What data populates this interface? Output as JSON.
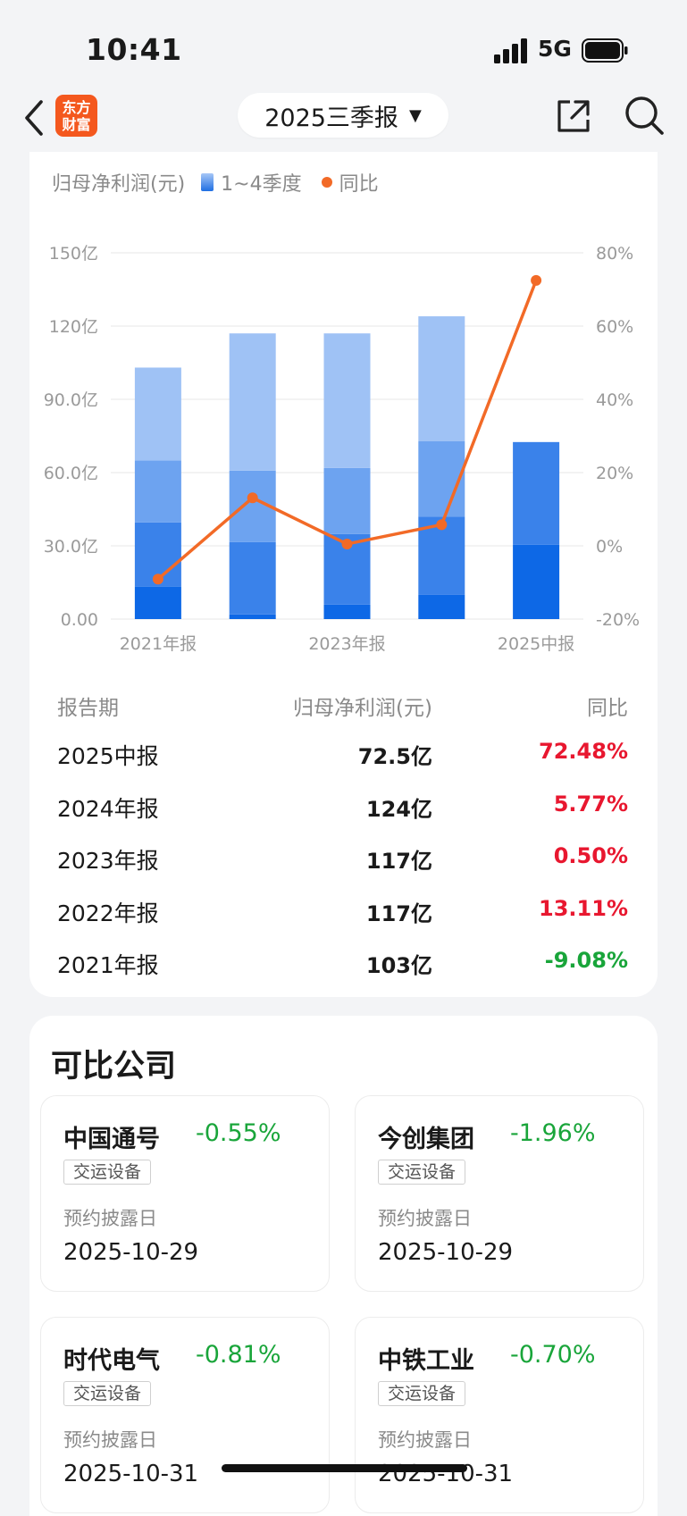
{
  "status": {
    "time": "10:41",
    "network": "5G"
  },
  "nav": {
    "logo_line1": "东方",
    "logo_line2": "财富",
    "period": "2025三季报",
    "caret": "▼"
  },
  "legend": {
    "metric": "归母净利润(元)",
    "bars": "1~4季度",
    "line": "同比"
  },
  "chart_data": {
    "type": "bar",
    "categories": [
      "2021年报",
      "2022年报",
      "2023年报",
      "2024年报",
      "2025中报"
    ],
    "x_tick_labels": [
      "2021年报",
      "",
      "2023年报",
      "",
      "2025中报"
    ],
    "stack_series": [
      {
        "name": "Q1",
        "values": [
          13.3,
          1.9,
          5.9,
          9.9,
          30.4
        ]
      },
      {
        "name": "Q2",
        "values": [
          26.3,
          29.6,
          28.9,
          32.1,
          42.1
        ]
      },
      {
        "name": "Q3",
        "values": [
          25.4,
          29.3,
          27.1,
          30.8,
          0
        ]
      },
      {
        "name": "Q4",
        "values": [
          38.0,
          56.2,
          55.1,
          51.2,
          0
        ]
      }
    ],
    "yoy": [
      -9.08,
      13.11,
      0.5,
      5.77,
      72.48
    ],
    "y_left": {
      "range": [
        0,
        150
      ],
      "ticks": [
        "0.00",
        "30.0亿",
        "60.0亿",
        "90.0亿",
        "120亿",
        "150亿"
      ]
    },
    "y_right": {
      "range": [
        -20,
        80
      ],
      "ticks": [
        "-20%",
        "0%",
        "20%",
        "40%",
        "60%",
        "80%"
      ]
    },
    "colors": {
      "stack": [
        "#0d68e6",
        "#3a82ea",
        "#6da3f0",
        "#9fc2f5"
      ],
      "line": "#f26a27",
      "grid": "#ececec"
    },
    "grid": true
  },
  "table": {
    "headers": [
      "报告期",
      "归母净利润(元)",
      "同比"
    ],
    "rows": [
      {
        "period": "2025中报",
        "profit": "72.5亿",
        "yoy": "72.48%",
        "dir": "up"
      },
      {
        "period": "2024年报",
        "profit": "124亿",
        "yoy": "5.77%",
        "dir": "up"
      },
      {
        "period": "2023年报",
        "profit": "117亿",
        "yoy": "0.50%",
        "dir": "up"
      },
      {
        "period": "2022年报",
        "profit": "117亿",
        "yoy": "13.11%",
        "dir": "up"
      },
      {
        "period": "2021年报",
        "profit": "103亿",
        "yoy": "-9.08%",
        "dir": "down"
      }
    ]
  },
  "peers": {
    "title": "可比公司",
    "date_label": "预约披露日",
    "items": [
      {
        "name": "中国通号",
        "change": "-0.55%",
        "tag": "交运设备",
        "date": "2025-10-29"
      },
      {
        "name": "今创集团",
        "change": "-1.96%",
        "tag": "交运设备",
        "date": "2025-10-29"
      },
      {
        "name": "时代电气",
        "change": "-0.81%",
        "tag": "交运设备",
        "date": "2025-10-31"
      },
      {
        "name": "中铁工业",
        "change": "-0.70%",
        "tag": "交运设备",
        "date": "2025-10-31"
      }
    ]
  },
  "colors": {
    "up": "#e8172f",
    "down": "#19a53a",
    "brand": "#f4581e"
  }
}
